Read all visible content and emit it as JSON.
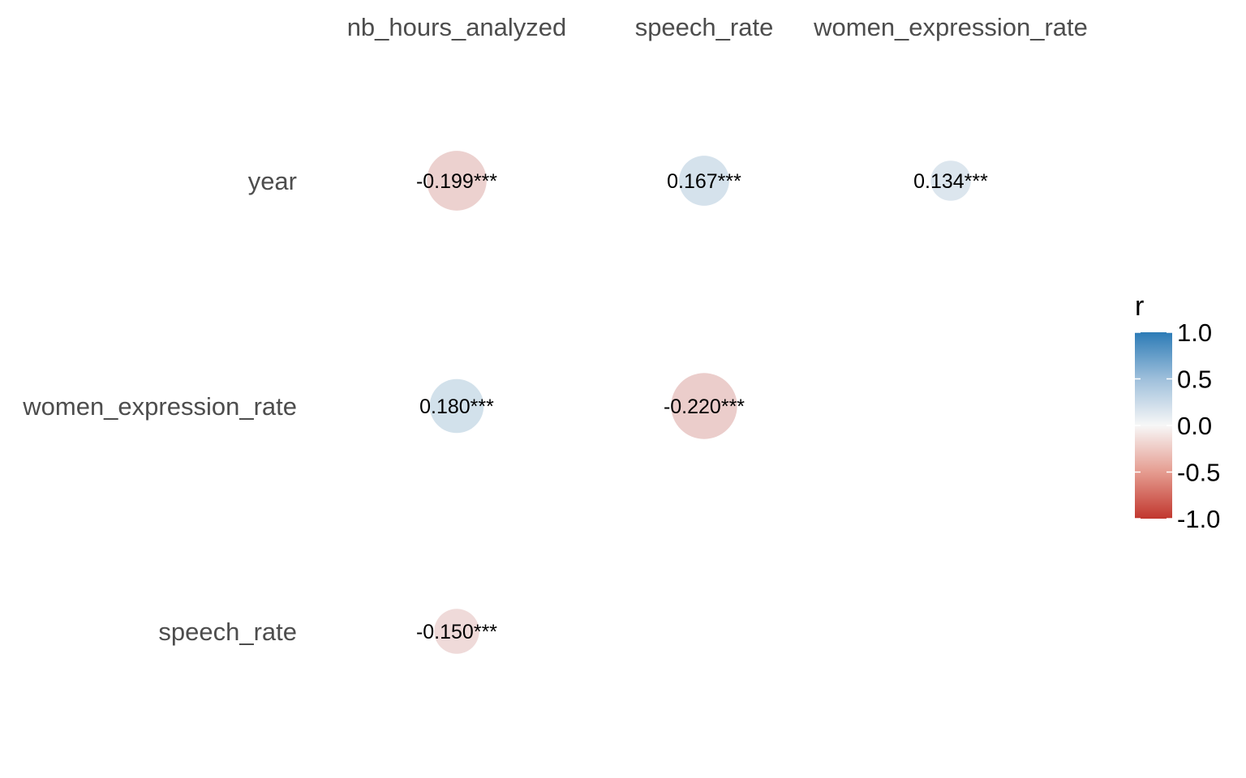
{
  "chart_data": {
    "type": "heatmap",
    "title": "",
    "columns": [
      "nb_hours_analyzed",
      "speech_rate",
      "women_expression_rate"
    ],
    "rows": [
      "year",
      "women_expression_rate",
      "speech_rate"
    ],
    "cells": [
      {
        "row": "year",
        "column": "nb_hours_analyzed",
        "r": -0.199,
        "label": "-0.199***"
      },
      {
        "row": "year",
        "column": "speech_rate",
        "r": 0.167,
        "label": "0.167***"
      },
      {
        "row": "year",
        "column": "women_expression_rate",
        "r": 0.134,
        "label": "0.134***"
      },
      {
        "row": "women_expression_rate",
        "column": "nb_hours_analyzed",
        "r": 0.18,
        "label": "0.180***"
      },
      {
        "row": "women_expression_rate",
        "column": "speech_rate",
        "r": -0.22,
        "label": "-0.220***"
      },
      {
        "row": "speech_rate",
        "column": "nb_hours_analyzed",
        "r": -0.15,
        "label": "-0.150***"
      }
    ],
    "marker": "circle sized by |r|, colored by r",
    "legend": {
      "title": "r",
      "placement": "right",
      "range": [
        -1.0,
        1.0
      ],
      "ticks": [
        1.0,
        0.5,
        0.0,
        -0.5,
        -1.0
      ],
      "tick_labels": [
        "1.0",
        "0.5",
        "0.0",
        "-0.5",
        "-1.0"
      ]
    },
    "colors": {
      "positive": "#2c7bb6",
      "neutral": "#f7f7f7",
      "negative": "#c1372e"
    }
  }
}
